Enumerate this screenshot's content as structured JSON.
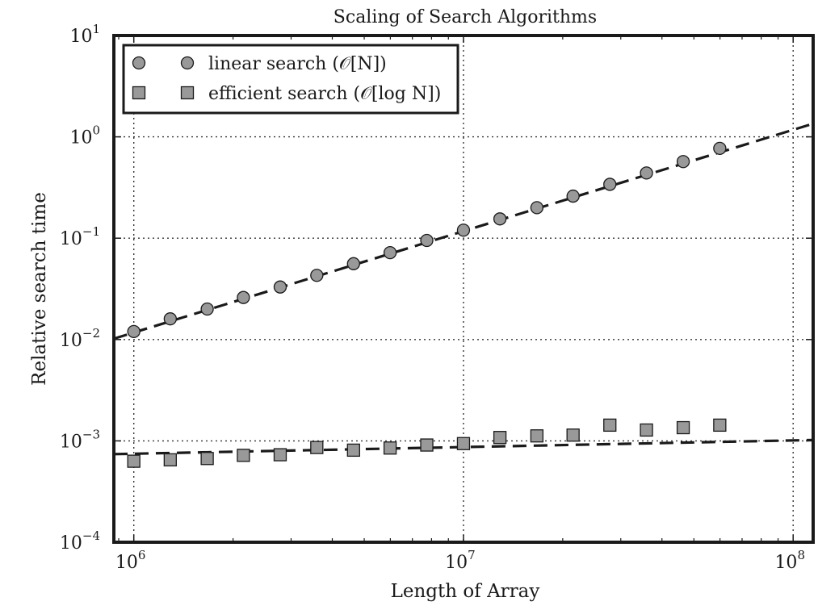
{
  "chart_data": {
    "type": "scatter",
    "title": "Scaling of Search Algorithms",
    "xlabel": "Length of Array",
    "ylabel": "Relative search time",
    "x_scale": "log",
    "y_scale": "log",
    "xlim": [
      870000,
      115000000
    ],
    "ylim": [
      0.0001,
      10
    ],
    "x_ticks": [
      {
        "value": 1000000,
        "base": "10",
        "exp": "6"
      },
      {
        "value": 10000000,
        "base": "10",
        "exp": "7"
      },
      {
        "value": 100000000,
        "base": "10",
        "exp": "8"
      }
    ],
    "y_ticks": [
      {
        "value": 0.0001,
        "base": "10",
        "exp": "−4"
      },
      {
        "value": 0.001,
        "base": "10",
        "exp": "−3"
      },
      {
        "value": 0.01,
        "base": "10",
        "exp": "−2"
      },
      {
        "value": 0.1,
        "base": "10",
        "exp": "−1"
      },
      {
        "value": 1,
        "base": "10",
        "exp": "0"
      },
      {
        "value": 10,
        "base": "10",
        "exp": "1"
      }
    ],
    "grid": true,
    "legend_position": "top-left",
    "series": [
      {
        "name": "linear search (𝒪[N])",
        "marker": "circle",
        "color": "#999999",
        "x": [
          1000000,
          1290000,
          1670000,
          2150000,
          2780000,
          3590000,
          4640000,
          5990000,
          7740000,
          10000000,
          12900000,
          16700000,
          21500000,
          27800000,
          35900000,
          46400000,
          59900000
        ],
        "y": [
          0.012,
          0.016,
          0.02,
          0.026,
          0.033,
          0.043,
          0.056,
          0.072,
          0.095,
          0.12,
          0.155,
          0.2,
          0.26,
          0.34,
          0.44,
          0.57,
          0.77
        ],
        "fit": {
          "x": [
            870000,
            115000000
          ],
          "y": [
            0.0102,
            1.35
          ]
        }
      },
      {
        "name": "efficient search (𝒪[log N])",
        "marker": "square",
        "color": "#999999",
        "x": [
          1000000,
          1290000,
          1670000,
          2150000,
          2780000,
          3590000,
          4640000,
          5990000,
          7740000,
          10000000,
          12900000,
          16700000,
          21500000,
          27800000,
          35900000,
          46400000,
          59900000
        ],
        "y": [
          0.00063,
          0.00065,
          0.00067,
          0.00072,
          0.00073,
          0.00086,
          0.00081,
          0.00085,
          0.00091,
          0.00094,
          0.00108,
          0.00112,
          0.00114,
          0.00143,
          0.00128,
          0.00135,
          0.00143
        ],
        "fit": {
          "x": [
            870000,
            115000000
          ],
          "y": [
            0.00074,
            0.00102
          ]
        }
      }
    ]
  }
}
